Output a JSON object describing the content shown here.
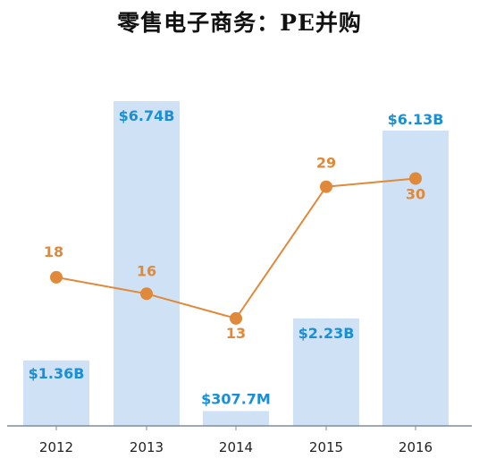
{
  "title": "零售电子商务：PE并购",
  "colors": {
    "bar": "#cfe2f5",
    "bar_label": "#1a8fd6",
    "line": "#e0893a",
    "count_label": "#e0893a",
    "axis": "#7f8c99",
    "tick_label": "#222222"
  },
  "chart_data": {
    "type": "bar",
    "title": "零售电子商务：PE并购",
    "categories": [
      "2012",
      "2013",
      "2014",
      "2015",
      "2016"
    ],
    "series": [
      {
        "type": "bar",
        "values": [
          1.36,
          6.74,
          0.3077,
          2.23,
          6.13
        ],
        "unit": "B USD",
        "labels": [
          "$1.36B",
          "$6.74B",
          "$307.7M",
          "$2.23B",
          "$6.13B"
        ]
      },
      {
        "type": "line",
        "values": [
          18,
          16,
          13,
          29,
          30
        ],
        "labels": [
          "18",
          "16",
          "13",
          "29",
          "30"
        ]
      }
    ],
    "grid": false,
    "legend": "none"
  }
}
